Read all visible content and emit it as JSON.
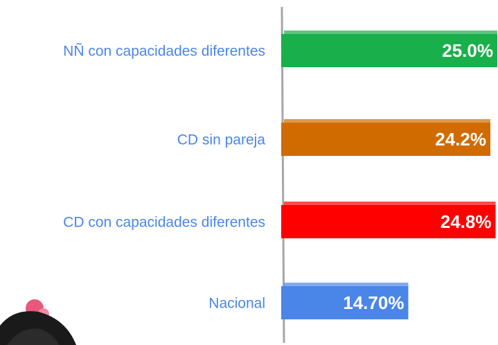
{
  "chart_data": {
    "type": "bar",
    "orientation": "horizontal",
    "categories": [
      "NÑ con capacidades diferentes",
      "CD sin pareja",
      "CD con capacidades diferentes",
      "Nacional"
    ],
    "values": [
      25.0,
      24.2,
      24.8,
      14.7
    ],
    "value_labels": [
      "25.0%",
      "24.2%",
      "24.8%",
      "14.70%"
    ],
    "colors": [
      "#19b04b",
      "#d06b00",
      "#ff0000",
      "#4a86e8"
    ]
  }
}
